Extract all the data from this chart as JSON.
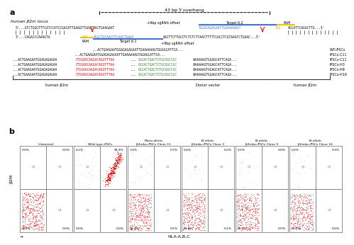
{
  "panel_a_label": "a",
  "panel_b_label": "b",
  "overhang_text": "43 bp 5’overhang",
  "locus_label": "human β2m locus",
  "sgrna_offset_top": "+9bp sgRNA offset",
  "target_6_2": "Target 6.2",
  "pam_top": "PAM",
  "pam_bot": "PAM",
  "target_6_1": "Target 6.1",
  "sgrna_offset_bot": "+9bp sgRNA offset",
  "labels_right": [
    "WT-iPSCs",
    "iPSCs-C11",
    "iPSCs-C11",
    "iPSCs-H3",
    "iPSCs-H9",
    "iPSCs-H16"
  ],
  "donor_label": "Donor vector",
  "human_b2m_left": "human β2m",
  "human_b2m_right": "human β2m",
  "flow_titles": [
    "Unstained",
    "Wild type-iPSCs",
    "Mono-allelic\nβ2mko-iPSCs Clone 11",
    "Bi-allelic\nβ2mko-iPSCs Clone 3",
    "Bi-allelic\nβ2mko-iPSCs Clone 9",
    "Bi-allelic\nβ2mko-iPSCs Clone 16"
  ],
  "flow_top_left": [
    "0.0%",
    "6.1%",
    "3.4%",
    "0.4%",
    "0.1%",
    "0.2%"
  ],
  "flow_top_right": [
    "0.0%",
    "93.9%",
    "0.7%",
    "0.2%",
    "0.0%",
    "0.3%"
  ],
  "flow_bot_left": [
    "100%",
    "0.0%",
    "95.4%",
    "99.4%",
    "99.9%",
    "99.5%"
  ],
  "flow_bot_right": [
    "0.0%",
    "0.0%",
    "0.5%",
    "0.1%",
    "0.0%",
    "0.0%"
  ],
  "ylabel_flow": "β2M",
  "xlabel_flow": "HLA-A,B,C",
  "bg_color": "#ffffff",
  "text_color": "#000000",
  "blue_color": "#4472c4",
  "gold_color": "#c8a000",
  "red_color": "#cc0000",
  "green_color": "#2e7d32"
}
